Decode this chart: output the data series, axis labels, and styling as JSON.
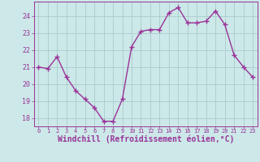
{
  "x": [
    0,
    1,
    2,
    3,
    4,
    5,
    6,
    7,
    8,
    9,
    10,
    11,
    12,
    13,
    14,
    15,
    16,
    17,
    18,
    19,
    20,
    21,
    22,
    23
  ],
  "y": [
    21.0,
    20.9,
    21.6,
    20.4,
    19.6,
    19.1,
    18.6,
    17.8,
    17.8,
    19.1,
    22.2,
    23.1,
    23.2,
    23.2,
    24.2,
    24.5,
    23.6,
    23.6,
    23.7,
    24.3,
    23.5,
    21.7,
    21.0,
    20.4
  ],
  "line_color": "#993399",
  "marker": "+",
  "marker_size": 4,
  "linewidth": 1.0,
  "bg_color": "#cce8e8",
  "grid_color": "#aacccc",
  "xlabel": "Windchill (Refroidissement éolien,°C)",
  "xlabel_fontsize": 7,
  "tick_color": "#993399",
  "tick_labelcolor": "#993399",
  "ylim": [
    17.5,
    24.85
  ],
  "xlim": [
    -0.5,
    23.5
  ],
  "yticks": [
    18,
    19,
    20,
    21,
    22,
    23,
    24
  ],
  "xticks": [
    0,
    1,
    2,
    3,
    4,
    5,
    6,
    7,
    8,
    9,
    10,
    11,
    12,
    13,
    14,
    15,
    16,
    17,
    18,
    19,
    20,
    21,
    22,
    23
  ]
}
